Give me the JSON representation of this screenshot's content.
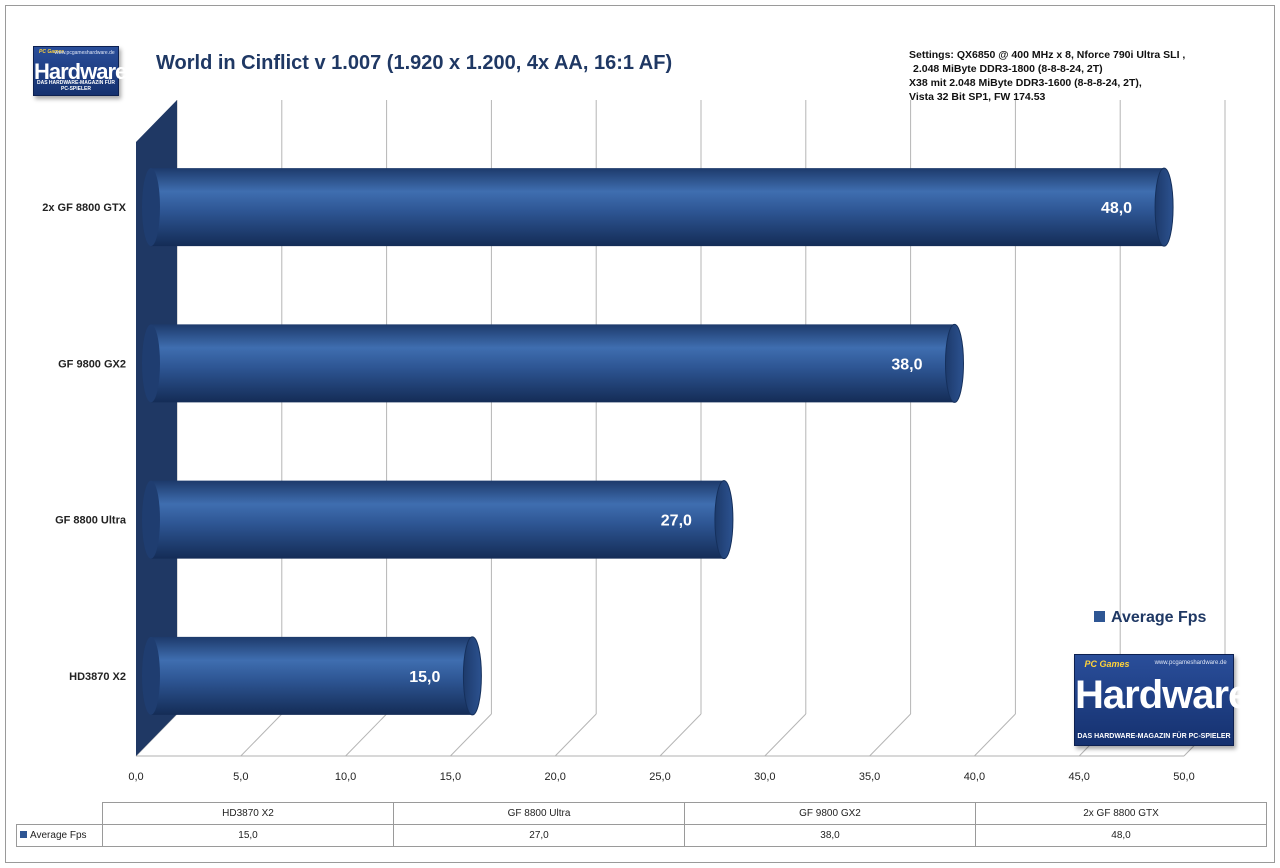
{
  "chart_data": {
    "type": "bar",
    "orientation": "horizontal",
    "title": "World in Cinflict v 1.007 (1.920 x 1.200, 4x AA, 16:1 AF)",
    "settings": [
      "Settings: QX6850 @ 400 MHz x 8, Nforce 790i Ultra SLI ,",
      "2.048 MiByte DDR3-1800 (8-8-8-24, 2T)",
      "X38 mit 2.048 MiByte DDR3-1600 (8-8-8-24, 2T),",
      "Vista 32 Bit SP1, FW 174.53"
    ],
    "categories": [
      "HD3870  X2",
      "GF 8800  Ultra",
      "GF 9800  GX2",
      "2x GF 8800  GTX"
    ],
    "series": [
      {
        "name": "Average Fps",
        "values": [
          15.0,
          27.0,
          38.0,
          48.0
        ],
        "labels": [
          "15,0",
          "27,0",
          "38,0",
          "48,0"
        ]
      }
    ],
    "xlim": [
      0,
      50
    ],
    "xticks": [
      0,
      5,
      10,
      15,
      20,
      25,
      30,
      35,
      40,
      45,
      50
    ],
    "xtick_labels": [
      "0,0",
      "5,0",
      "10,0",
      "15,0",
      "20,0",
      "25,0",
      "30,0",
      "35,0",
      "40,0",
      "45,0",
      "50,0"
    ],
    "grid": "vertical",
    "legend": "right",
    "bar_color": "#2e5694",
    "wall_color": "#1f3864"
  },
  "data_table": {
    "categories": [
      "HD3870 X2",
      "GF 8800 Ultra",
      "GF 9800 GX2",
      "2x GF 8800 GTX"
    ],
    "row_label": "Average Fps",
    "values": [
      "15,0",
      "27,0",
      "38,0",
      "48,0"
    ]
  },
  "logo": {
    "top": "PC Games",
    "url": "www.pcgameshardware.de",
    "main": "Hardware",
    "sub": "DAS HARDWARE-MAGAZIN FÜR PC-SPIELER"
  }
}
